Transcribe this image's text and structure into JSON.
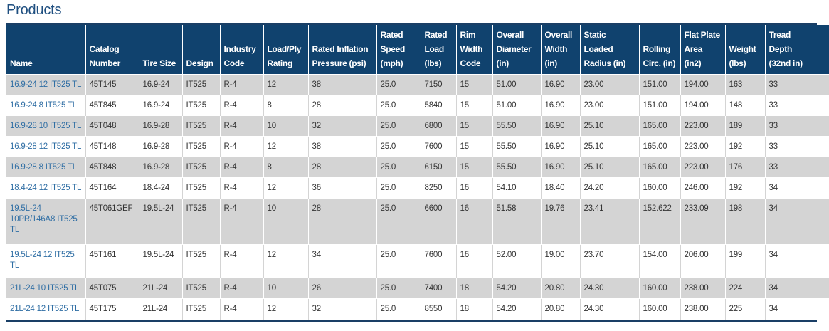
{
  "page_title": "Products",
  "headers": [
    [
      "Name"
    ],
    [
      "Catalog",
      "Number"
    ],
    [
      "Tire Size"
    ],
    [
      "Design"
    ],
    [
      "Industry",
      "Code"
    ],
    [
      "Load/Ply",
      "Rating"
    ],
    [
      "Rated Inflation",
      "Pressure (psi)"
    ],
    [
      "Rated",
      "Speed",
      "(mph)"
    ],
    [
      "Rated",
      "Load",
      "(lbs)"
    ],
    [
      "Rim",
      "Width",
      "Code"
    ],
    [
      "Overall",
      "Diameter",
      "(in)"
    ],
    [
      "Overall",
      "Width",
      "(in)"
    ],
    [
      "Static",
      "Loaded",
      "Radius (in)"
    ],
    [
      "Rolling",
      "Circ. (in)"
    ],
    [
      "Flat Plate",
      "Area (in2)"
    ],
    [
      "Weight",
      "(lbs)"
    ],
    [
      "Tread",
      "Depth",
      "(32nd in)"
    ]
  ],
  "rows": [
    [
      "16.9-24 12 IT525 TL",
      "45T145",
      "16.9-24",
      "IT525",
      "R-4",
      "12",
      "38",
      "25.0",
      "7150",
      "15",
      "51.00",
      "16.90",
      "23.00",
      "151.00",
      "194.00",
      "163",
      "33"
    ],
    [
      "16.9-24 8 IT525 TL",
      "45T845",
      "16.9-24",
      "IT525",
      "R-4",
      "8",
      "28",
      "25.0",
      "5840",
      "15",
      "51.00",
      "16.90",
      "23.00",
      "151.00",
      "194.00",
      "148",
      "33"
    ],
    [
      "16.9-28 10 IT525 TL",
      "45T048",
      "16.9-28",
      "IT525",
      "R-4",
      "10",
      "32",
      "25.0",
      "6800",
      "15",
      "55.50",
      "16.90",
      "25.10",
      "165.00",
      "223.00",
      "189",
      "33"
    ],
    [
      "16.9-28 12 IT525 TL",
      "45T148",
      "16.9-28",
      "IT525",
      "R-4",
      "12",
      "38",
      "25.0",
      "7600",
      "15",
      "55.50",
      "16.90",
      "25.10",
      "165.00",
      "223.00",
      "192",
      "33"
    ],
    [
      "16.9-28 8 IT525 TL",
      "45T848",
      "16.9-28",
      "IT525",
      "R-4",
      "8",
      "28",
      "25.0",
      "6150",
      "15",
      "55.50",
      "16.90",
      "25.10",
      "165.00",
      "223.00",
      "176",
      "33"
    ],
    [
      "18.4-24 12 IT525 TL",
      "45T164",
      "18.4-24",
      "IT525",
      "R-4",
      "12",
      "36",
      "25.0",
      "8250",
      "16",
      "54.10",
      "18.40",
      "24.20",
      "160.00",
      "246.00",
      "192",
      "34"
    ],
    [
      "19.5L-24 10PR/146A8 IT525 TL",
      "45T061GEF",
      "19.5L-24",
      "IT525",
      "R-4",
      "10",
      "28",
      "25.0",
      "6600",
      "16",
      "51.58",
      "19.76",
      "23.41",
      "152.622",
      "233.09",
      "198",
      "34"
    ],
    [
      "19.5L-24 12 IT525 TL",
      "45T161",
      "19.5L-24",
      "IT525",
      "R-4",
      "12",
      "34",
      "25.0",
      "7600",
      "16",
      "52.00",
      "19.00",
      "23.70",
      "154.00",
      "206.00",
      "199",
      "34"
    ],
    [
      "21L-24 10 IT525 TL",
      "45T075",
      "21L-24",
      "IT525",
      "R-4",
      "10",
      "26",
      "25.0",
      "7400",
      "18",
      "54.20",
      "20.80",
      "24.30",
      "160.00",
      "238.00",
      "224",
      "34"
    ],
    [
      "21L-24 12 IT525 TL",
      "45T175",
      "21L-24",
      "IT525",
      "R-4",
      "12",
      "32",
      "25.0",
      "8550",
      "18",
      "54.20",
      "20.80",
      "24.30",
      "160.00",
      "238.00",
      "225",
      "34"
    ]
  ],
  "colors": {
    "header_bg": "#10426e",
    "stripe": "#d4d4d4",
    "link": "#2f6ea4",
    "title": "#1f4f80"
  }
}
